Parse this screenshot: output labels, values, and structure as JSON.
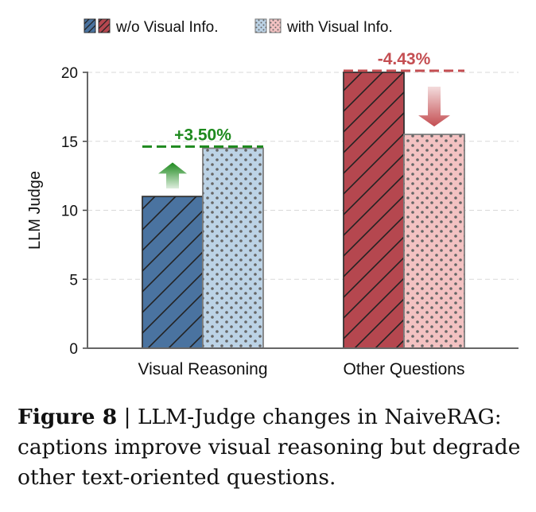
{
  "chart_data": {
    "type": "bar",
    "categories": [
      "Visual Reasoning",
      "Other Questions"
    ],
    "series": [
      {
        "name": "w/o Visual Info.",
        "values": [
          11.0,
          20.0
        ]
      },
      {
        "name": "with Visual Info.",
        "values": [
          14.5,
          15.5
        ]
      }
    ],
    "ylabel": "LLM Judge",
    "ylim": [
      0,
      20
    ],
    "yticks": [
      0,
      5,
      10,
      15,
      20
    ],
    "grid": true,
    "legend_position": "top",
    "annotations": [
      {
        "category": "Visual Reasoning",
        "text": "+3.50%",
        "direction": "up",
        "color": "#1e8a1e"
      },
      {
        "category": "Other Questions",
        "text": "-4.43%",
        "direction": "down",
        "color": "#c44e52"
      }
    ],
    "colors": {
      "visual_wo": "#4a73a0",
      "visual_with": "#bcd3e6",
      "other_wo": "#b5474f",
      "other_with": "#f3c2c2"
    }
  },
  "caption": {
    "label": "Figure 8",
    "separator": " | ",
    "text": "LLM-Judge changes in NaiveRAG: captions improve visual reasoning but degrade other text-oriented questions."
  }
}
